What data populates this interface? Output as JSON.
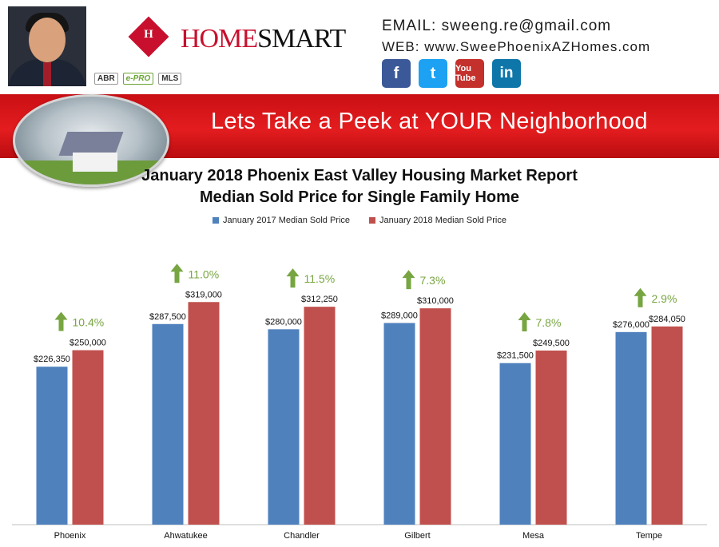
{
  "header": {
    "logo_mark": "H",
    "logo_word_1": "HOME",
    "logo_word_2": "SMART",
    "badges": [
      "ABR",
      "e-PRO",
      "MLS"
    ],
    "email_label": "EMAIL:",
    "email": "sweeng.re@gmail.com",
    "web_label": "WEB:",
    "web": "www.SweePhoenixAZHomes.com",
    "social": [
      {
        "name": "facebook",
        "glyph": "f",
        "icon": "facebook-icon"
      },
      {
        "name": "twitter",
        "glyph": "t",
        "icon": "twitter-icon"
      },
      {
        "name": "youtube",
        "glyph": "You Tube",
        "icon": "youtube-icon"
      },
      {
        "name": "linkedin",
        "glyph": "in",
        "icon": "linkedin-icon"
      }
    ]
  },
  "banner": {
    "text": "Lets Take a Peek at YOUR Neighborhood"
  },
  "chart_data": {
    "type": "bar",
    "title": "January 2018 Phoenix East Valley Housing Market Report",
    "subtitle": "Median Sold Price for Single Family Home",
    "categories": [
      "Phoenix",
      "Ahwatukee",
      "Chandler",
      "Gilbert",
      "Mesa",
      "Tempe"
    ],
    "series": [
      {
        "name": "January 2017 Median Sold Price",
        "color": "#4f81bd",
        "values": [
          226350,
          287500,
          280000,
          289000,
          231500,
          276000
        ],
        "labels": [
          "$226,350",
          "$287,500",
          "$280,000",
          "$289,000",
          "$231,500",
          "$276,000"
        ]
      },
      {
        "name": "January 2018 Median Sold Price",
        "color": "#c0504d",
        "values": [
          250000,
          319000,
          312250,
          310000,
          249500,
          284050
        ],
        "labels": [
          "$250,000",
          "$319,000",
          "$312,250",
          "$310,000",
          "$249,500",
          "$284,050"
        ]
      }
    ],
    "changes": [
      "10.4%",
      "11.0%",
      "11.5%",
      "7.3%",
      "7.8%",
      "2.9%"
    ],
    "change_color": "#77a541",
    "ylim": [
      0,
      420000
    ],
    "legend_position": "top",
    "grid": false
  }
}
